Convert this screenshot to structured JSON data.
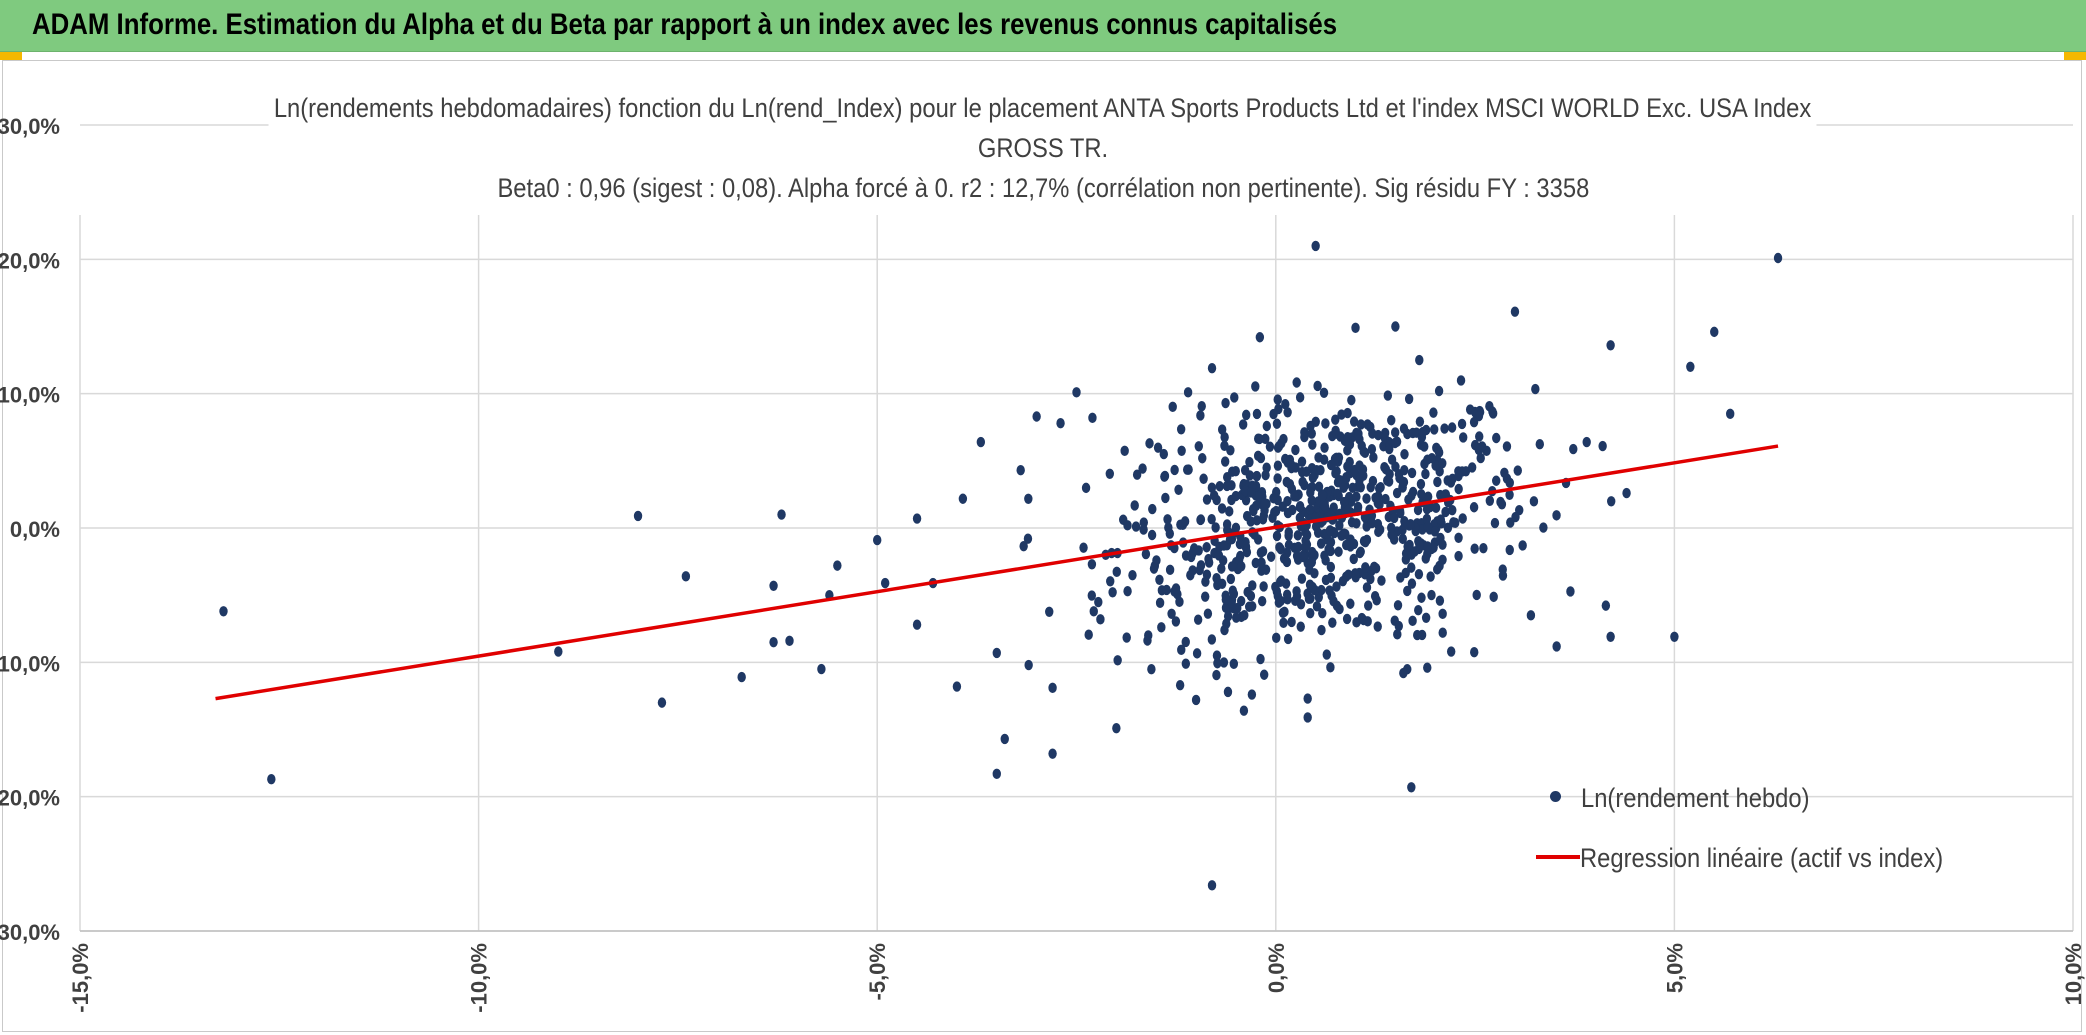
{
  "banner": {
    "text": "ADAM Informe. Estimation du Alpha et du Beta par rapport à un index avec les revenus connus capitalisés"
  },
  "colors": {
    "banner_bg": "#7fca7f",
    "points": "#1f3864",
    "regression": "#e00000",
    "grid": "#d9d9d9",
    "axis_text": "#404040"
  },
  "chart_data": {
    "type": "scatter",
    "title_lines": [
      "Ln(rendements hebdomadaires) fonction du Ln(rend_Index) pour le placement ANTA Sports Products Ltd et l'index MSCI WORLD Exc. USA Index",
      "GROSS TR.",
      "Beta0 : 0,96 (sigest : 0,08).  Alpha forcé à 0. r2 : 12,7% (corrélation non pertinente). Sig résidu FY : 3358"
    ],
    "xlabel": "",
    "ylabel": "",
    "xlim": [
      -0.15,
      0.1
    ],
    "ylim": [
      -0.3,
      0.3
    ],
    "x_ticks": [
      -0.15,
      -0.1,
      -0.05,
      0.0,
      0.05,
      0.1
    ],
    "x_tick_labels": [
      "-15,0%",
      "-10,0%",
      "-5,0%",
      "0,0%",
      "5,0%",
      "10,0%"
    ],
    "y_ticks": [
      -0.3,
      -0.2,
      -0.1,
      0.0,
      0.1,
      0.2,
      0.3
    ],
    "y_tick_labels": [
      "-30,0%",
      "-20,0%",
      "-10,0%",
      "0,0%",
      "10,0%",
      "20,0%",
      "30,0%"
    ],
    "grid": true,
    "legend_position": "bottom-right",
    "legend": {
      "points_label": "Ln(rendement hebdo)",
      "line_label": "Regression linéaire (actif vs index)"
    },
    "regression_line": {
      "x": [
        -0.133,
        0.063
      ],
      "y": [
        -0.127,
        0.061
      ]
    },
    "outliers": [
      [
        -0.132,
        -0.062
      ],
      [
        -0.126,
        -0.187
      ],
      [
        -0.09,
        -0.092
      ],
      [
        -0.08,
        0.009
      ],
      [
        -0.077,
        -0.13
      ],
      [
        -0.074,
        -0.036
      ],
      [
        -0.067,
        -0.111
      ],
      [
        -0.062,
        0.01
      ],
      [
        -0.063,
        -0.043
      ],
      [
        -0.063,
        -0.085
      ],
      [
        -0.061,
        -0.084
      ],
      [
        -0.057,
        -0.105
      ],
      [
        -0.056,
        -0.05
      ],
      [
        -0.055,
        -0.028
      ],
      [
        -0.05,
        -0.009
      ],
      [
        -0.049,
        -0.041
      ],
      [
        -0.045,
        0.007
      ],
      [
        -0.045,
        -0.072
      ],
      [
        -0.043,
        -0.041
      ],
      [
        -0.04,
        -0.118
      ],
      [
        -0.037,
        0.064
      ],
      [
        -0.035,
        -0.093
      ],
      [
        -0.035,
        -0.183
      ],
      [
        -0.034,
        -0.157
      ],
      [
        -0.032,
        0.043
      ],
      [
        -0.031,
        -0.102
      ],
      [
        -0.03,
        0.083
      ],
      [
        -0.028,
        -0.168
      ],
      [
        -0.028,
        -0.119
      ],
      [
        -0.027,
        0.078
      ],
      [
        -0.025,
        0.101
      ],
      [
        -0.023,
        0.082
      ],
      [
        -0.022,
        -0.068
      ],
      [
        -0.02,
        -0.149
      ],
      [
        -0.016,
        -0.08
      ],
      [
        -0.012,
        -0.117
      ],
      [
        -0.011,
        0.101
      ],
      [
        -0.01,
        -0.128
      ],
      [
        -0.008,
        0.119
      ],
      [
        -0.008,
        -0.266
      ],
      [
        -0.006,
        -0.122
      ],
      [
        -0.004,
        -0.136
      ],
      [
        -0.003,
        -0.124
      ],
      [
        -0.002,
        0.142
      ],
      [
        0.005,
        0.21
      ],
      [
        0.004,
        -0.127
      ],
      [
        0.004,
        -0.141
      ],
      [
        0.01,
        0.149
      ],
      [
        0.015,
        0.15
      ],
      [
        0.016,
        -0.108
      ],
      [
        0.017,
        -0.193
      ],
      [
        0.018,
        0.125
      ],
      [
        0.019,
        -0.104
      ],
      [
        0.022,
        -0.092
      ],
      [
        0.03,
        0.161
      ],
      [
        0.032,
        -0.065
      ],
      [
        0.039,
        0.064
      ],
      [
        0.041,
        0.061
      ],
      [
        0.042,
        0.136
      ],
      [
        0.042,
        -0.081
      ],
      [
        0.044,
        0.026
      ],
      [
        0.05,
        -0.081
      ],
      [
        0.052,
        0.12
      ],
      [
        0.055,
        0.146
      ],
      [
        0.057,
        0.085
      ],
      [
        0.063,
        0.201
      ]
    ],
    "cluster_note_values": {
      "center_x": 0.006,
      "center_y": 0.004,
      "spread_x": 0.013,
      "spread_y": 0.045,
      "count": 800,
      "beta": 0.96
    }
  }
}
